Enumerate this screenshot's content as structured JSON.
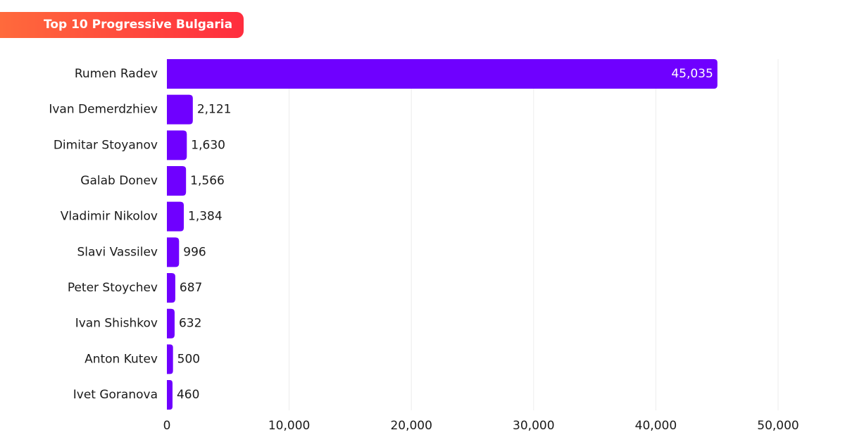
{
  "title": "Top 10 Progressive Bulgaria",
  "colors": {
    "bar": "#6f00ff",
    "title_gradient_start": "#ff6a3c",
    "title_gradient_end": "#ff2d3e",
    "grid": "#ececec",
    "text": "#1a1a1a"
  },
  "chart_data": {
    "type": "bar",
    "orientation": "horizontal",
    "title": "Top 10 Progressive Bulgaria",
    "categories": [
      "Rumen Radev",
      "Ivan Demerdzhiev",
      "Dimitar Stoyanov",
      "Galab Donev",
      "Vladimir Nikolov",
      "Slavi Vassilev",
      "Peter Stoychev",
      "Ivan Shishkov",
      "Anton Kutev",
      "Ivet Goranova"
    ],
    "values": [
      45035,
      2121,
      1630,
      1566,
      1384,
      996,
      687,
      632,
      500,
      460
    ],
    "value_labels": [
      "45,035",
      "2,121",
      "1,630",
      "1,566",
      "1,384",
      "996",
      "687",
      "632",
      "500",
      "460"
    ],
    "xlim": [
      0,
      50000
    ],
    "ticks": [
      0,
      10000,
      20000,
      30000,
      40000,
      50000
    ],
    "tick_labels": [
      "0",
      "10,000",
      "20,000",
      "30,000",
      "40,000",
      "50,000"
    ],
    "grid": true,
    "legend": "none",
    "xlabel": "",
    "ylabel": ""
  }
}
